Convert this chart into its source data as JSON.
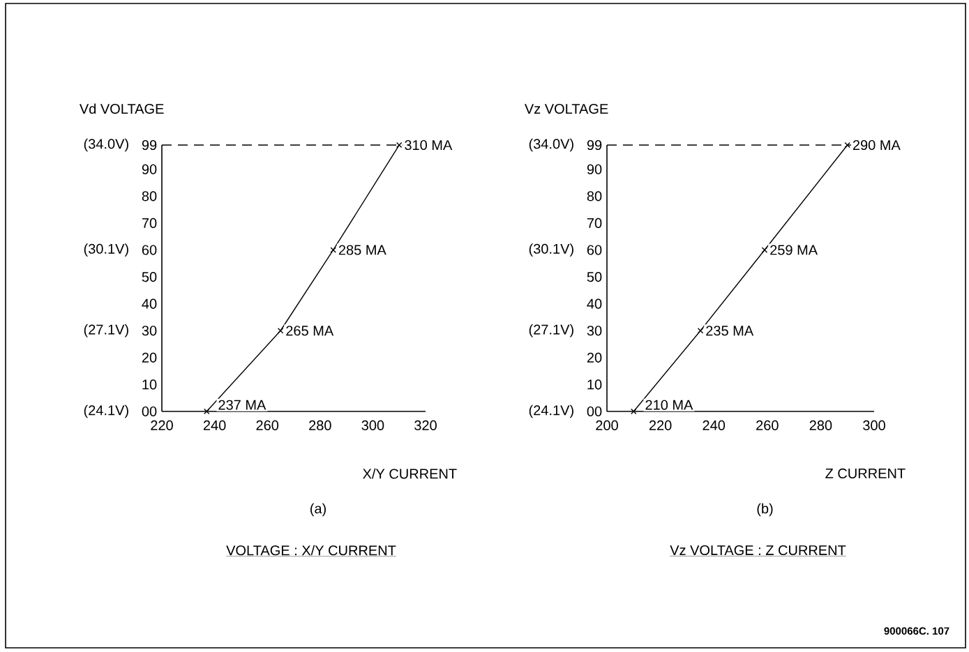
{
  "chart_data": [
    {
      "type": "line",
      "title": "VOLTAGE : X/Y CURRENT",
      "subtitle": "(a)",
      "xlabel": "X/Y CURRENT",
      "y2label": "Vd VOLTAGE",
      "color": "#000000",
      "marker": "cross",
      "line_style": "solid",
      "x": [
        237,
        265,
        285,
        310
      ],
      "values": [
        0,
        30,
        60,
        99
      ],
      "xlim": [
        220,
        320
      ],
      "xticks": [
        220,
        240,
        260,
        280,
        300,
        320
      ],
      "ylim": [
        0,
        99
      ],
      "yticks": [
        {
          "value": 0,
          "label": "00"
        },
        10,
        20,
        30,
        40,
        50,
        60,
        70,
        80,
        90,
        99
      ],
      "y2lim": [
        24.1,
        34.0
      ],
      "y2ticks": [
        {
          "value": 24.1,
          "label": "(24.1V)"
        },
        {
          "value": 27.1,
          "label": "(27.1V)"
        },
        {
          "value": 30.1,
          "label": "(30.1V)"
        },
        {
          "value": 34.0,
          "label": "(34.0V)"
        }
      ],
      "ref_lines": [
        {
          "axis": "y",
          "value": 99,
          "label": null,
          "line_style": "dashed",
          "color": "#000000"
        }
      ],
      "annotations": [
        {
          "text": "237 MA",
          "x": 237,
          "y": 0
        },
        {
          "text": "265 MA",
          "x": 265,
          "y": 30
        },
        {
          "text": "285 MA",
          "x": 285,
          "y": 60
        },
        {
          "text": "310 MA",
          "x": 310,
          "y": 99
        }
      ]
    },
    {
      "type": "line",
      "title": "Vz VOLTAGE : Z CURRENT",
      "subtitle": "(b)",
      "xlabel": "Z CURRENT",
      "y2label": "Vz VOLTAGE",
      "color": "#000000",
      "marker": "cross",
      "line_style": "solid",
      "x": [
        210,
        235,
        259,
        290
      ],
      "values": [
        0,
        30,
        60,
        99
      ],
      "xlim": [
        200,
        300
      ],
      "xticks": [
        200,
        220,
        240,
        260,
        280,
        300
      ],
      "ylim": [
        0,
        99
      ],
      "yticks": [
        {
          "value": 0,
          "label": "00"
        },
        10,
        20,
        30,
        40,
        50,
        60,
        70,
        80,
        90,
        99
      ],
      "y2lim": [
        24.1,
        34.0
      ],
      "y2ticks": [
        {
          "value": 24.1,
          "label": "(24.1V)"
        },
        {
          "value": 27.1,
          "label": "(27.1V)"
        },
        {
          "value": 30.1,
          "label": "(30.1V)"
        },
        {
          "value": 34.0,
          "label": "(34.0V)"
        }
      ],
      "ref_lines": [
        {
          "axis": "y",
          "value": 99,
          "label": null,
          "line_style": "dashed",
          "color": "#000000"
        }
      ],
      "annotations": [
        {
          "text": "210 MA",
          "x": 210,
          "y": 0
        },
        {
          "text": "235 MA",
          "x": 235,
          "y": 30
        },
        {
          "text": "259 MA",
          "x": 259,
          "y": 60
        },
        {
          "text": "290 MA",
          "x": 290,
          "y": 99
        },
        "900066C. 107"
      ]
    }
  ]
}
